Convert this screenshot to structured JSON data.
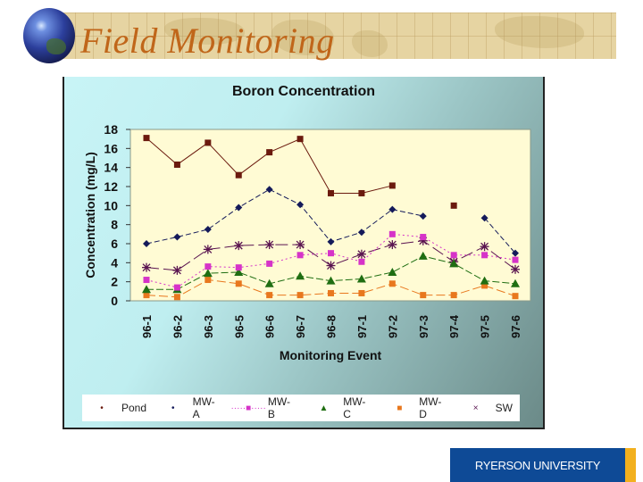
{
  "slide": {
    "title": "Field Monitoring",
    "logo_text": "RYERSON UNIVERSITY",
    "colors": {
      "title": "#c0661a",
      "banner": "#e6d4a2",
      "logo_bg": "#0e4a96",
      "logo_stripe": "#f2b01e"
    }
  },
  "chart_data": {
    "type": "line",
    "title": "Boron Concentration",
    "xlabel": "Monitoring Event",
    "ylabel": "Concentration (mg/L)",
    "ylim": [
      0,
      18
    ],
    "yticks": [
      0,
      2,
      4,
      6,
      8,
      10,
      12,
      14,
      16,
      18
    ],
    "grid": false,
    "legend_position": "bottom",
    "categories": [
      "96-1",
      "96-2",
      "96-3",
      "96-5",
      "96-6",
      "96-7",
      "96-8",
      "97-1",
      "97-2",
      "97-3",
      "97-4",
      "97-5",
      "97-6"
    ],
    "series": [
      {
        "name": "Pond",
        "color": "#6b1a0e",
        "marker": "square",
        "dash": "",
        "values": [
          17.1,
          14.3,
          16.6,
          13.2,
          15.6,
          17.0,
          11.3,
          11.3,
          12.1,
          null,
          10.0,
          null,
          null
        ]
      },
      {
        "name": "MW-A",
        "color": "#141a5a",
        "marker": "diamond",
        "dash": "6,3",
        "values": [
          6.0,
          6.7,
          7.5,
          9.8,
          11.7,
          10.1,
          6.2,
          7.2,
          9.6,
          8.9,
          null,
          8.7,
          5.0
        ]
      },
      {
        "name": "MW-B",
        "color": "#d633c8",
        "marker": "square",
        "dash": "2,3",
        "values": [
          2.2,
          1.4,
          3.6,
          3.5,
          3.9,
          4.8,
          5.0,
          4.1,
          7.0,
          6.7,
          4.8,
          4.8,
          4.3
        ]
      },
      {
        "name": "MW-C",
        "color": "#1f6e12",
        "marker": "triangle",
        "dash": "8,3",
        "values": [
          1.2,
          1.2,
          2.9,
          3.0,
          1.8,
          2.6,
          2.1,
          2.3,
          3.0,
          4.7,
          3.9,
          2.1,
          1.8
        ]
      },
      {
        "name": "MW-D",
        "color": "#e8781e",
        "marker": "square",
        "dash": "10,4",
        "values": [
          0.6,
          0.4,
          2.2,
          1.8,
          0.6,
          0.6,
          0.8,
          0.8,
          1.8,
          0.6,
          0.6,
          1.6,
          0.5
        ]
      },
      {
        "name": "SW",
        "color": "#5a1450",
        "marker": "star",
        "dash": "14,5",
        "values": [
          3.5,
          3.2,
          5.4,
          5.8,
          5.9,
          5.9,
          3.7,
          4.9,
          5.9,
          6.3,
          4.1,
          5.7,
          3.3
        ]
      }
    ]
  }
}
